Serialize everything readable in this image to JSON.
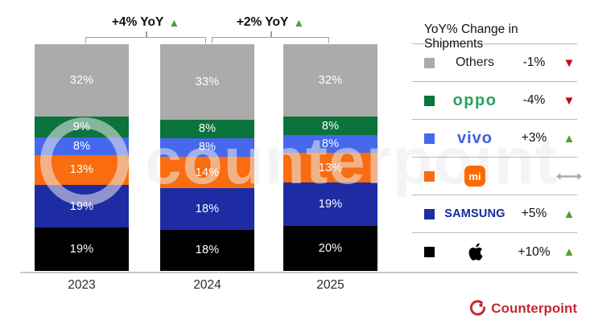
{
  "chart_data": {
    "type": "bar",
    "stacked": true,
    "value_unit": "%",
    "ylim": [
      0,
      100
    ],
    "grid": false,
    "legend_position": "right",
    "categories": [
      "2023",
      "2024",
      "2025"
    ],
    "series": [
      {
        "name": "Others",
        "brand_text": "Others",
        "brand_style": "text",
        "icon": null,
        "values": [
          32,
          33,
          32
        ],
        "color": "#ABABAB",
        "yoy": "-1%",
        "trend": "down"
      },
      {
        "name": "OPPO",
        "brand_text": "oppo",
        "brand_style": "oppo",
        "icon": "oppo-logo",
        "values": [
          9,
          8,
          8
        ],
        "color": "#0B733C",
        "yoy": "-4%",
        "trend": "down"
      },
      {
        "name": "vivo",
        "brand_text": "vivo",
        "brand_style": "vivo",
        "icon": "vivo-logo",
        "values": [
          8,
          8,
          8
        ],
        "color": "#4668EC",
        "yoy": "+3%",
        "trend": "up"
      },
      {
        "name": "Xiaomi",
        "brand_text": "mi",
        "brand_style": "mi",
        "icon": "xiaomi-logo",
        "values": [
          13,
          14,
          13
        ],
        "color": "#F96C0F",
        "yoy": "",
        "trend": "flat"
      },
      {
        "name": "Samsung",
        "brand_text": "SAMSUNG",
        "brand_style": "samsung",
        "icon": "samsung-logo",
        "values": [
          19,
          18,
          19
        ],
        "color": "#1E2CA4",
        "yoy": "+5%",
        "trend": "up"
      },
      {
        "name": "Apple",
        "brand_text": "",
        "brand_style": "apple",
        "icon": "apple-logo",
        "values": [
          19,
          18,
          20
        ],
        "color": "#000000",
        "yoy": "+10%",
        "trend": "up"
      }
    ]
  },
  "annotations": [
    {
      "label": "+4% YoY",
      "trend": "up"
    },
    {
      "label": "+2% YoY",
      "trend": "up"
    }
  ],
  "legend": {
    "header": "YoY% Change in Shipments"
  },
  "watermark": "counterpoint",
  "branding": {
    "name": "Counterpoint"
  },
  "colors": {
    "trend_up": "#4CA32E",
    "trend_down": "#C00718",
    "trend_flat": "#ABABAB",
    "oppo_green": "#2AA05E",
    "vivo_blue": "#415FE0",
    "samsung_blue": "#1428A0",
    "xiaomi_orange": "#FF6900",
    "counterpoint_red": "#C12A35"
  }
}
